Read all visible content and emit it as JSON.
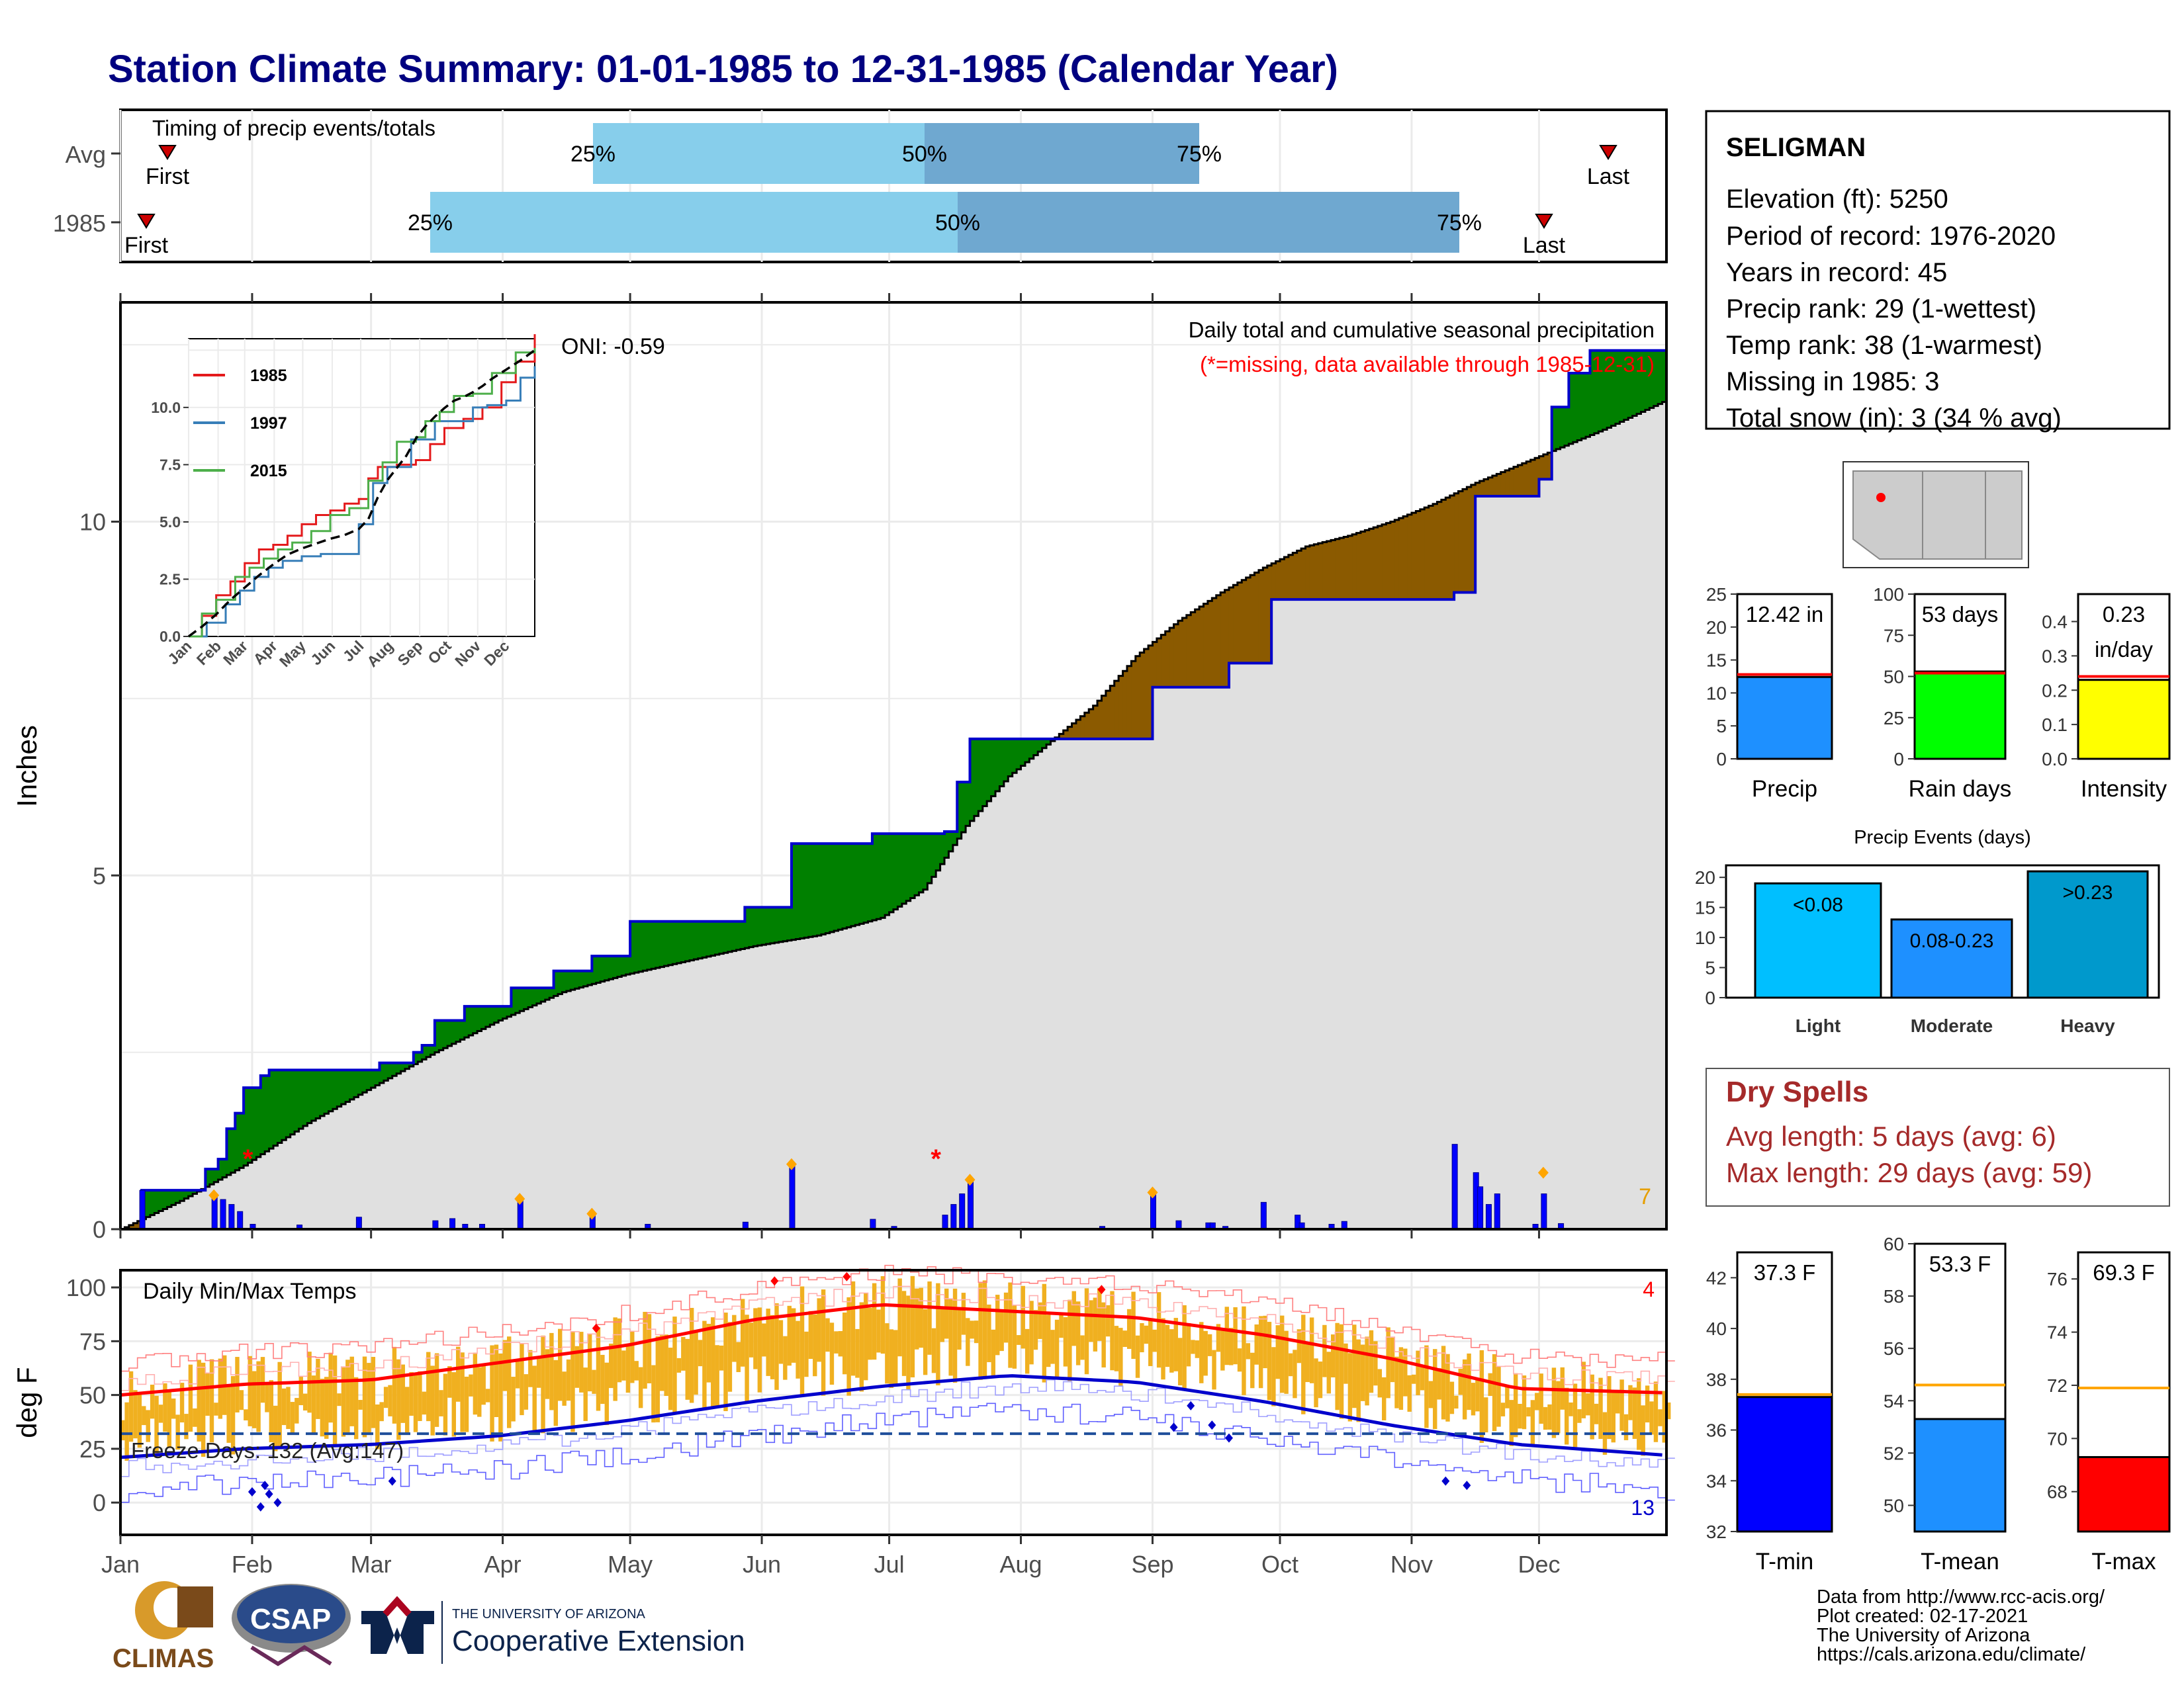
{
  "title": "Station Climate Summary: 01-01-1985 to 12-31-1985 (Calendar Year)",
  "colors": {
    "title": "#000080",
    "green": "#008000",
    "brown": "#8B5A00",
    "grey": "#e0e0e0",
    "blue": "#0000ff",
    "red": "#ff0000",
    "orange": "#f0b020",
    "light": "#87ceeb",
    "mid": "#6fa8d0"
  },
  "timing": {
    "label": "Timing of precip events/totals",
    "rows": [
      {
        "name": "Avg",
        "first": "First",
        "last": "Last",
        "p25": "25%",
        "p50": "50%",
        "p75": "75%"
      },
      {
        "name": "1985",
        "first": "First",
        "last": "Last",
        "p25": "25%",
        "p50": "50%",
        "p75": "75%"
      }
    ]
  },
  "station": {
    "name": "SELIGMAN",
    "lines": [
      "Elevation (ft): 5250",
      "Period of record: 1976-2020",
      "Years in record: 45",
      "Precip rank: 29 (1-wettest)",
      "Temp rank: 38 (1-warmest)",
      "Missing in 1985: 3",
      "Total snow (in): 3 (34 % avg)"
    ]
  },
  "precip_panel": {
    "ylabel": "Inches",
    "oni": "ONI: -0.59",
    "legend1": "Daily total and cumulative seasonal precipitation",
    "legend2": "(*=missing, data available through 1985-12-31)",
    "corner_count": "7",
    "yticks": [
      "0",
      "5",
      "10"
    ]
  },
  "months": [
    "Jan",
    "Feb",
    "Mar",
    "Apr",
    "May",
    "Jun",
    "Jul",
    "Aug",
    "Sep",
    "Oct",
    "Nov",
    "Dec"
  ],
  "inset": {
    "series": [
      {
        "name": "1985",
        "color": "#e41a1c"
      },
      {
        "name": "1997",
        "color": "#377eb8"
      },
      {
        "name": "2015",
        "color": "#4daf4a"
      }
    ],
    "yticks": [
      "0.0",
      "2.5",
      "5.0",
      "7.5",
      "10.0"
    ],
    "xticks": [
      "Jan",
      "Feb",
      "Mar",
      "Apr",
      "May",
      "Jun",
      "Jul",
      "Aug",
      "Sep",
      "Oct",
      "Nov",
      "Dec"
    ]
  },
  "temp_panel": {
    "title": "Daily Min/Max Temps",
    "ylabel": "deg F",
    "yticks": [
      "0",
      "25",
      "50",
      "75",
      "100"
    ],
    "freeze": "Freeze Days: 132 (Avg:147)",
    "count_top": "4",
    "count_bottom": "13"
  },
  "chart_data": [
    {
      "type": "bar",
      "name": "precip-total",
      "categories": [
        "Precip"
      ],
      "values": [
        12.42
      ],
      "avg": 12.8,
      "label": "12.42 in",
      "ylim": [
        0,
        25
      ],
      "yticks": [
        "0",
        "5",
        "10",
        "15",
        "20",
        "25"
      ]
    },
    {
      "type": "bar",
      "name": "rain-days",
      "categories": [
        "Rain days"
      ],
      "values": [
        53
      ],
      "avg": 52,
      "label": "53 days",
      "ylim": [
        0,
        100
      ],
      "yticks": [
        "0",
        "25",
        "50",
        "75",
        "100"
      ]
    },
    {
      "type": "bar",
      "name": "intensity",
      "categories": [
        "Intensity"
      ],
      "values": [
        0.23
      ],
      "avg": 0.24,
      "label1": "0.23",
      "label2": "in/day",
      "ylim": [
        0,
        0.48
      ],
      "yticks": [
        "0.0",
        "0.1",
        "0.2",
        "0.3",
        "0.4"
      ]
    },
    {
      "type": "bar",
      "name": "precip-events",
      "title": "Precip Events (days)",
      "categories": [
        "Light",
        "Moderate",
        "Heavy"
      ],
      "labels": [
        "<0.08",
        "0.08-0.23",
        ">0.23"
      ],
      "values": [
        19,
        13,
        21
      ],
      "ylim": [
        0,
        22
      ],
      "yticks": [
        "0",
        "5",
        "10",
        "15",
        "20"
      ]
    },
    {
      "type": "bar",
      "name": "t-min",
      "categories": [
        "T-min"
      ],
      "values": [
        37.3
      ],
      "avg": 37.4,
      "label": "37.3 F",
      "ylim": [
        32,
        43
      ],
      "yticks": [
        "32",
        "34",
        "36",
        "38",
        "40",
        "42"
      ]
    },
    {
      "type": "bar",
      "name": "t-mean",
      "categories": [
        "T-mean"
      ],
      "values": [
        53.3
      ],
      "avg": 54.6,
      "label": "53.3 F",
      "ylim": [
        49,
        60
      ],
      "yticks": [
        "50",
        "52",
        "54",
        "56",
        "58",
        "60"
      ]
    },
    {
      "type": "bar",
      "name": "t-max",
      "categories": [
        "T-max"
      ],
      "values": [
        69.3
      ],
      "avg": 71.9,
      "label": "69.3 F",
      "ylim": [
        66.5,
        77
      ],
      "yticks": [
        "68",
        "70",
        "72",
        "74",
        "76"
      ]
    },
    {
      "type": "area",
      "name": "cumulative-precip",
      "x_unit": "day of year",
      "ylim": [
        0,
        13.1
      ],
      "obs_steps": [
        [
          1,
          0
        ],
        [
          6,
          0.55
        ],
        [
          20,
          0.55
        ],
        [
          21,
          0.85
        ],
        [
          24,
          0.99
        ],
        [
          26,
          1.42
        ],
        [
          28,
          1.64
        ],
        [
          30,
          2.0
        ],
        [
          34,
          2.17
        ],
        [
          36,
          2.25
        ],
        [
          50,
          2.25
        ],
        [
          62,
          2.35
        ],
        [
          70,
          2.5
        ],
        [
          72,
          2.6
        ],
        [
          75,
          2.95
        ],
        [
          82,
          3.15
        ],
        [
          93,
          3.41
        ],
        [
          103,
          3.65
        ],
        [
          112,
          3.86
        ],
        [
          121,
          4.35
        ],
        [
          148,
          4.55
        ],
        [
          159,
          5.45
        ],
        [
          178,
          5.59
        ],
        [
          195,
          5.62
        ],
        [
          198,
          6.32
        ],
        [
          201,
          6.93
        ],
        [
          223,
          6.93
        ],
        [
          233,
          6.93
        ],
        [
          244,
          7.66
        ],
        [
          250,
          7.66
        ],
        [
          262,
          8.0
        ],
        [
          272,
          8.9
        ],
        [
          286,
          8.9
        ],
        [
          300,
          8.9
        ],
        [
          315,
          9.0
        ],
        [
          320,
          10.36
        ],
        [
          335,
          10.6
        ],
        [
          338,
          11.62
        ],
        [
          342,
          12.1
        ],
        [
          347,
          12.42
        ],
        [
          365,
          12.42
        ]
      ],
      "avg_curve": [
        [
          1,
          0
        ],
        [
          15,
          0.4
        ],
        [
          30,
          0.9
        ],
        [
          45,
          1.5
        ],
        [
          60,
          2.0
        ],
        [
          75,
          2.5
        ],
        [
          90,
          2.95
        ],
        [
          105,
          3.35
        ],
        [
          120,
          3.6
        ],
        [
          135,
          3.8
        ],
        [
          150,
          4.0
        ],
        [
          165,
          4.15
        ],
        [
          180,
          4.4
        ],
        [
          190,
          4.8
        ],
        [
          200,
          5.7
        ],
        [
          210,
          6.4
        ],
        [
          220,
          6.9
        ],
        [
          230,
          7.4
        ],
        [
          240,
          8.1
        ],
        [
          250,
          8.6
        ],
        [
          260,
          9.0
        ],
        [
          270,
          9.35
        ],
        [
          280,
          9.65
        ],
        [
          290,
          9.8
        ],
        [
          300,
          10.0
        ],
        [
          310,
          10.25
        ],
        [
          320,
          10.55
        ],
        [
          330,
          10.8
        ],
        [
          340,
          11.05
        ],
        [
          350,
          11.3
        ],
        [
          365,
          11.72
        ]
      ],
      "daily": [
        [
          6,
          0.55
        ],
        [
          23,
          0.46
        ],
        [
          25,
          0.42
        ],
        [
          27,
          0.35
        ],
        [
          29,
          0.25
        ],
        [
          32,
          0.07
        ],
        [
          43,
          0.06
        ],
        [
          57,
          0.17
        ],
        [
          75,
          0.12
        ],
        [
          79,
          0.15
        ],
        [
          82,
          0.07
        ],
        [
          86,
          0.07
        ],
        [
          95,
          0.41
        ],
        [
          112,
          0.2
        ],
        [
          125,
          0.07
        ],
        [
          148,
          0.1
        ],
        [
          159,
          0.9
        ],
        [
          178,
          0.14
        ],
        [
          183,
          0.04
        ],
        [
          195,
          0.2
        ],
        [
          197,
          0.35
        ],
        [
          199,
          0.5
        ],
        [
          201,
          0.68
        ],
        [
          232,
          0.04
        ],
        [
          244,
          0.5
        ],
        [
          250,
          0.12
        ],
        [
          257,
          0.09
        ],
        [
          258,
          0.09
        ],
        [
          261,
          0.04
        ],
        [
          270,
          0.38
        ],
        [
          278,
          0.2
        ],
        [
          279,
          0.09
        ],
        [
          286,
          0.07
        ],
        [
          289,
          0.11
        ],
        [
          315,
          1.2
        ],
        [
          320,
          0.8
        ],
        [
          321,
          0.6
        ],
        [
          323,
          0.35
        ],
        [
          325,
          0.5
        ],
        [
          334,
          0.07
        ],
        [
          336,
          0.5
        ],
        [
          340,
          0.08
        ]
      ]
    },
    {
      "type": "line",
      "name": "daily-temps",
      "x_unit": "day of year",
      "ylim": [
        -15,
        108
      ],
      "avg_max": [
        [
          1,
          50
        ],
        [
          30,
          55
        ],
        [
          60,
          57
        ],
        [
          90,
          65
        ],
        [
          120,
          73
        ],
        [
          150,
          85
        ],
        [
          180,
          92
        ],
        [
          210,
          89
        ],
        [
          240,
          86
        ],
        [
          270,
          78
        ],
        [
          300,
          67
        ],
        [
          330,
          53
        ],
        [
          365,
          51
        ]
      ],
      "avg_min": [
        [
          1,
          21
        ],
        [
          30,
          25
        ],
        [
          60,
          27
        ],
        [
          90,
          31
        ],
        [
          120,
          38
        ],
        [
          150,
          47
        ],
        [
          180,
          54
        ],
        [
          210,
          59
        ],
        [
          240,
          56
        ],
        [
          270,
          47
        ],
        [
          300,
          36
        ],
        [
          330,
          27
        ],
        [
          365,
          22
        ]
      ],
      "freeze_line": 32
    }
  ],
  "footer": [
    "Data from http://www.rcc-acis.org/",
    "Plot created: 02-17-2021",
    "The University of Arizona",
    "https://cals.arizona.edu/climate/"
  ],
  "logos": {
    "climas": "CLIMAS",
    "csap": "CSAP",
    "ua_small": "THE UNIVERSITY OF ARIZONA",
    "ua_big": "Cooperative Extension"
  }
}
